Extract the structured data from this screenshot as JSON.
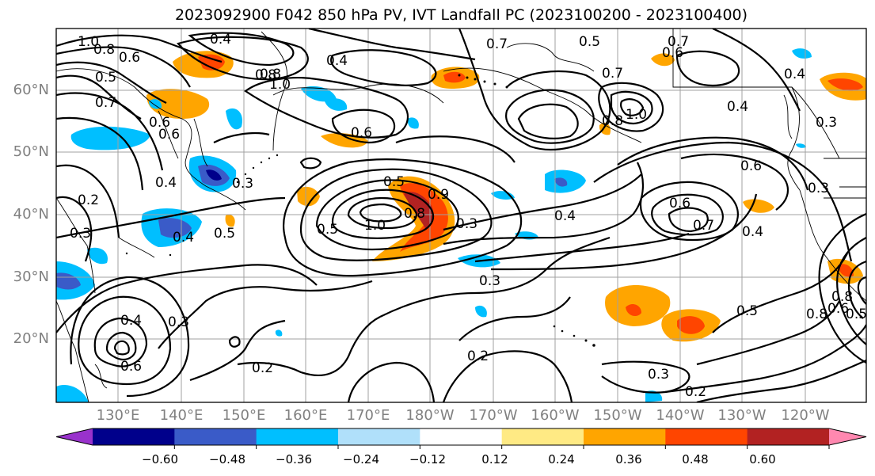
{
  "title": "2023092900 F042 850 hPa PV, IVT Landfall PC (2023100200 - 2023100400)",
  "lat_labels": [
    "60°N",
    "50°N",
    "40°N",
    "30°N",
    "20°N"
  ],
  "lon_labels": [
    "130°E",
    "140°E",
    "150°E",
    "160°E",
    "170°E",
    "180°W",
    "170°W",
    "160°W",
    "150°W",
    "140°W",
    "130°W",
    "120°W"
  ],
  "colorbar": {
    "ticks": [
      "−0.60",
      "−0.48",
      "−0.36",
      "−0.24",
      "−0.12",
      "0.12",
      "0.24",
      "0.36",
      "0.48",
      "0.60"
    ],
    "colors": [
      "#9932cc",
      "#00008b",
      "#3a5bc8",
      "#00bfff",
      "#b0e0fa",
      "#ffffff",
      "#ffea84",
      "#ffa500",
      "#ff4500",
      "#b22222",
      "#ff88b0"
    ]
  },
  "contour_labels": [
    "1.0",
    "0.8",
    "0.6",
    "0.4",
    "0.5",
    "0.7",
    "0.6",
    "0.6",
    "0.4",
    "0.4",
    "0.2",
    "0.3",
    "0.3",
    "0.5",
    "0.8",
    "1.0",
    "0.7",
    "0.5",
    "0.8",
    "0.7",
    "0.8",
    "1.0",
    "0.6",
    "0.7",
    "0.6",
    "0.4",
    "0.4",
    "0.3",
    "0.4",
    "0.5",
    "1.0",
    "0.9",
    "0.3",
    "0.8",
    "0.4",
    "0.5",
    "0.3",
    "0.7",
    "0.6",
    "0.4",
    "0.6",
    "0.3",
    "0.8",
    "0.5",
    "0.4",
    "0.6",
    "0.2",
    "0.3",
    "0.2",
    "0.5",
    "0.8",
    "0.6",
    "0.2",
    "0.3"
  ]
}
